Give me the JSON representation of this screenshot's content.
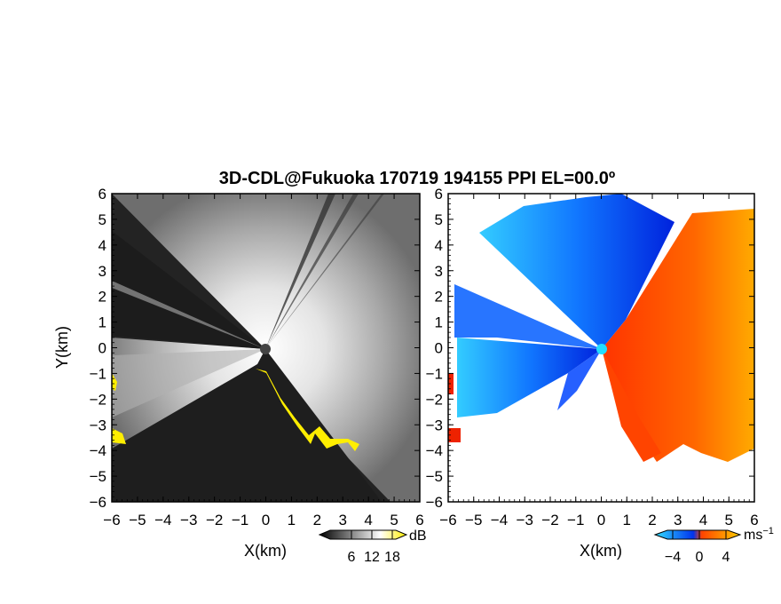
{
  "chart_data": {
    "type": "heatmap",
    "title": "3D-CDL@Fukuoka 170719 194155 PPI EL=00.0º",
    "panels": [
      {
        "name": "reflectivity",
        "xlabel": "X(km)",
        "ylabel": "Y(km)",
        "xlim": [
          -6,
          6
        ],
        "ylim": [
          -6,
          6
        ],
        "xticks": [
          "−6",
          "−5",
          "−4",
          "−3",
          "−2",
          "−1",
          "0",
          "1",
          "2",
          "3",
          "4",
          "5",
          "6"
        ],
        "yticks": [
          "6",
          "5",
          "4",
          "3",
          "2",
          "1",
          "0",
          "−1",
          "−2",
          "−3",
          "−4",
          "−5",
          "−6"
        ],
        "colorbar": {
          "unit": "dB",
          "ticks": [
            "6",
            "12",
            "18"
          ],
          "colors": [
            "#000000",
            "#ffffff",
            "#ffee00"
          ]
        }
      },
      {
        "name": "doppler-velocity",
        "xlabel": "X(km)",
        "xlim": [
          -6,
          6
        ],
        "ylim": [
          -6,
          6
        ],
        "xticks": [
          "−6",
          "−5",
          "−4",
          "−3",
          "−2",
          "−1",
          "0",
          "1",
          "2",
          "3",
          "4",
          "5",
          "6"
        ],
        "yticks": [
          "6",
          "5",
          "4",
          "3",
          "2",
          "1",
          "0",
          "−1",
          "−2",
          "−3",
          "−4",
          "−5",
          "−6"
        ],
        "colorbar": {
          "unit": "ms",
          "unit_exponent": "−1",
          "ticks": [
            "−4",
            "0",
            "4"
          ],
          "colors": [
            "#33ddff",
            "#0033ee",
            "#ff4400",
            "#ffcc00"
          ]
        }
      }
    ]
  }
}
